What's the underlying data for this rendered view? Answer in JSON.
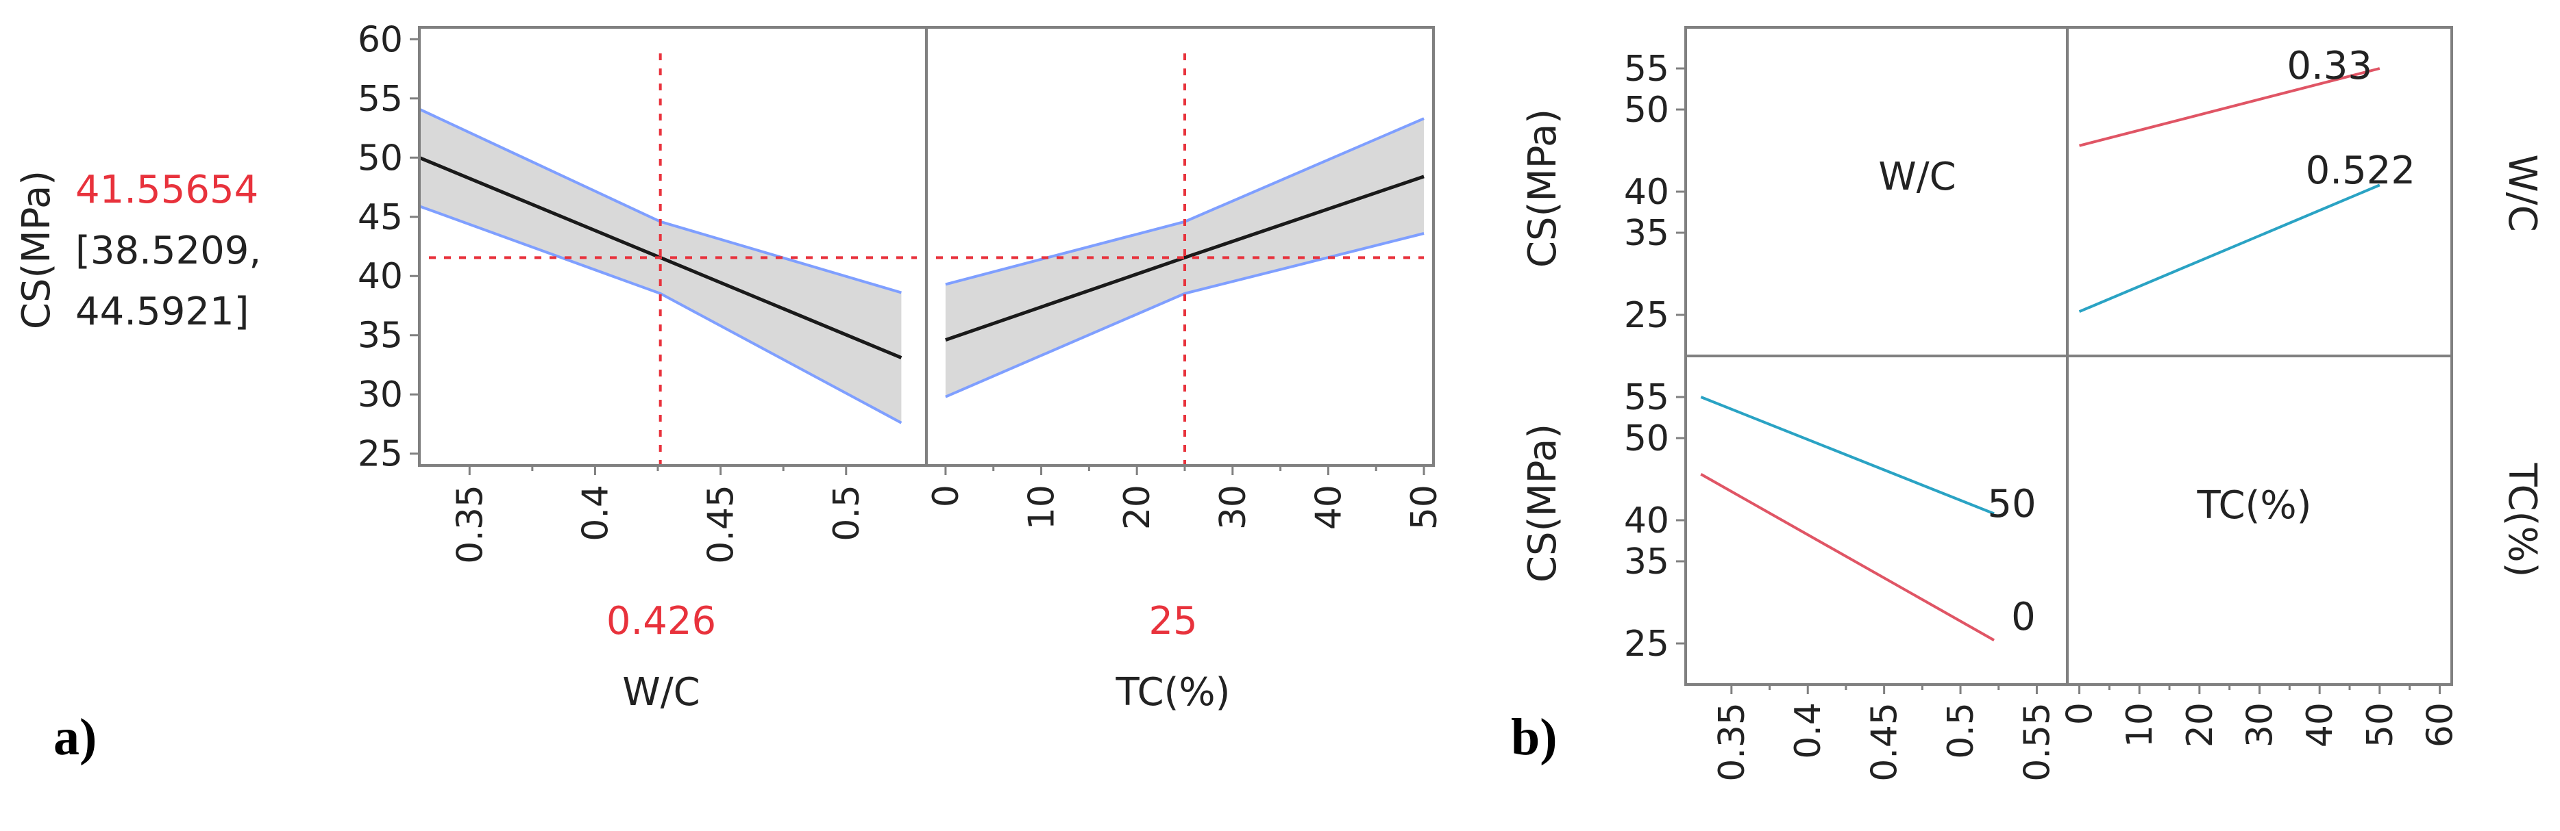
{
  "colors": {
    "band_fill": "#d9d9d9",
    "band_edge": "#7f9fff",
    "fit_line": "#1a1a1a",
    "crosshair": "#e8323c",
    "current_value_text": "#e8323c",
    "series_low": "#e05565",
    "series_high": "#2aa3c4",
    "frame": "#808080"
  },
  "panel_a": {
    "label": "a)",
    "ylabel": "CS(MPa)",
    "predicted_value": "41.55654",
    "ci_line1": "[38.5209,",
    "ci_line2": "44.5921]"
  },
  "panel_b": {
    "label": "b)",
    "diag_wc": "W/C",
    "diag_tc": "TC(%)",
    "ylabel_top": "CS(MPa)",
    "ylabel_bottom": "CS(MPa)",
    "side_label_top": "W/C",
    "side_label_bottom": "TC(%)"
  },
  "chart_data": [
    {
      "type": "line",
      "title": "",
      "ylabel": "CS(MPa)",
      "ylim": [
        24,
        61
      ],
      "yticks": [
        25,
        30,
        35,
        40,
        45,
        50,
        55,
        60
      ],
      "grid": false,
      "current_y": 41.55654,
      "confidence_interval": [
        38.5209,
        44.5921
      ],
      "subplots": [
        {
          "xlabel": "W/C",
          "xlim": [
            0.33,
            0.532
          ],
          "xticks": [
            0.35,
            0.4,
            0.45,
            0.5
          ],
          "tick_labels": [
            "0.35",
            "0.4",
            "0.45",
            "0.5"
          ],
          "current_x": 0.426,
          "current_x_label": "0.426",
          "series": [
            {
              "name": "",
              "x": [
                0.33,
                0.426,
                0.522
              ],
              "y": [
                50.0,
                41.56,
                33.1
              ]
            },
            {
              "name": "",
              "x": [
                0.33,
                0.426,
                0.522
              ],
              "y": [
                54.1,
                44.59,
                38.6
              ]
            },
            {
              "name": "",
              "x": [
                0.33,
                0.426,
                0.522
              ],
              "y": [
                45.9,
                38.52,
                27.6
              ]
            }
          ]
        },
        {
          "xlabel": "TC(%)",
          "xlim": [
            -2,
            51
          ],
          "xticks": [
            0,
            10,
            20,
            30,
            40,
            50
          ],
          "tick_labels": [
            "0",
            "10",
            "20",
            "30",
            "40",
            "50"
          ],
          "current_x": 25,
          "current_x_label": "25",
          "series": [
            {
              "name": "",
              "x": [
                0,
                25,
                50
              ],
              "y": [
                34.6,
                41.56,
                48.4
              ]
            },
            {
              "name": "",
              "x": [
                0,
                25,
                50
              ],
              "y": [
                39.3,
                44.59,
                53.3
              ]
            },
            {
              "name": "",
              "x": [
                0,
                25,
                50
              ],
              "y": [
                29.8,
                38.52,
                43.6
              ]
            }
          ]
        }
      ]
    },
    {
      "type": "line",
      "title": "",
      "ylabel": "CS(MPa)",
      "grid": false,
      "yticks": [
        25,
        35,
        40,
        50,
        55
      ],
      "subplots": [
        {
          "x_variable": "TC(%)",
          "xlim": [
            -2,
            62
          ],
          "xticks": [
            0,
            10,
            20,
            30,
            40,
            50,
            60
          ],
          "tick_labels": [
            "0",
            "10",
            "20",
            "30",
            "40",
            "50",
            "60"
          ],
          "ylim": [
            20,
            60
          ],
          "series": [
            {
              "name": "0.33",
              "x": [
                0,
                50
              ],
              "y": [
                45.6,
                55.0
              ]
            },
            {
              "name": "0.522",
              "x": [
                0,
                50
              ],
              "y": [
                25.4,
                40.8
              ]
            }
          ]
        },
        {
          "x_variable": "W/C",
          "xlim": [
            0.32,
            0.57
          ],
          "xticks": [
            0.35,
            0.4,
            0.45,
            0.5,
            0.55
          ],
          "tick_labels": [
            "0.35",
            "0.4",
            "0.45",
            "0.5",
            "0.55"
          ],
          "ylim": [
            20,
            60
          ],
          "series": [
            {
              "name": "50",
              "x": [
                0.33,
                0.522
              ],
              "y": [
                55.0,
                40.8
              ]
            },
            {
              "name": "0",
              "x": [
                0.33,
                0.522
              ],
              "y": [
                45.6,
                25.4
              ]
            }
          ]
        }
      ]
    }
  ]
}
